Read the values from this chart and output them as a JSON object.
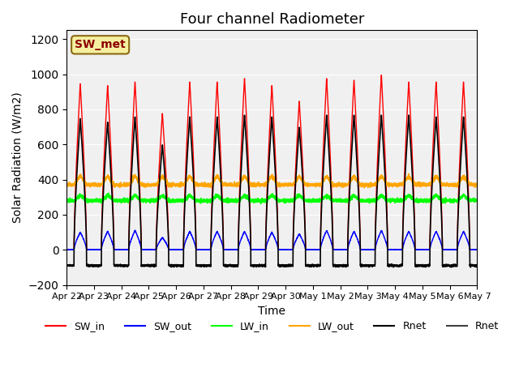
{
  "title": "Four channel Radiometer",
  "xlabel": "Time",
  "ylabel": "Solar Radiation (W/m2)",
  "ylim": [
    -200,
    1250
  ],
  "background_color": "#f0f0f0",
  "annotation_text": "SW_met",
  "annotation_bg": "#f5f0a0",
  "annotation_border": "#8B6914",
  "tick_labels": [
    "Apr 22",
    "Apr 23",
    "Apr 24",
    "Apr 25",
    "Apr 26",
    "Apr 27",
    "Apr 28",
    "Apr 29",
    "Apr 30",
    "May 1",
    "May 2",
    "May 3",
    "May 4",
    "May 5",
    "May 6",
    "May 7"
  ],
  "legend_labels": [
    "SW_in",
    "SW_out",
    "LW_in",
    "LW_out",
    "Rnet",
    "Rnet"
  ],
  "legend_colors": [
    "red",
    "blue",
    "lime",
    "orange",
    "black",
    "#404040"
  ],
  "num_days": 15,
  "SW_in_peak": [
    950,
    940,
    960,
    780,
    960,
    960,
    980,
    940,
    850,
    980,
    970,
    1000,
    960,
    960,
    960
  ],
  "SW_out_peak": [
    100,
    105,
    110,
    70,
    105,
    105,
    105,
    100,
    90,
    110,
    105,
    110,
    105,
    105,
    105
  ],
  "LW_in_base": 280.0,
  "LW_out_base": 370.0,
  "Rnet_peak": [
    750,
    730,
    760,
    600,
    760,
    760,
    770,
    760,
    700,
    770,
    770,
    770,
    770,
    760,
    760
  ],
  "Rnet_night": -90.0
}
